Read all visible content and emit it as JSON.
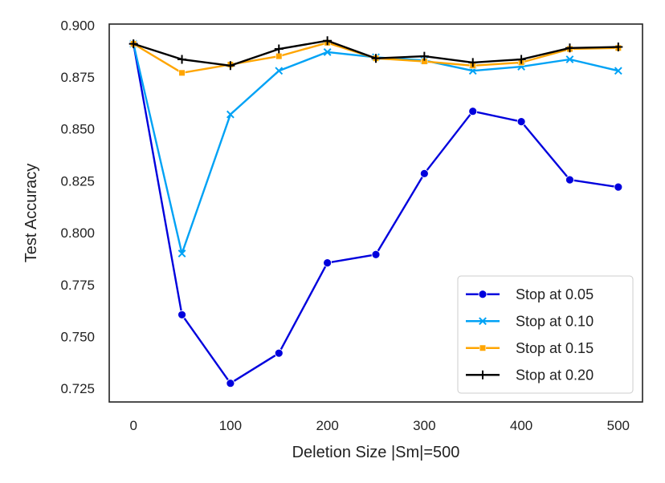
{
  "chart_data": {
    "type": "line",
    "title": "",
    "xlabel": "Deletion Size |Sm|=500",
    "ylabel": "Test Accuracy",
    "xlim": [
      -25,
      525
    ],
    "ylim": [
      0.7185,
      0.9005
    ],
    "x": [
      0,
      50,
      100,
      150,
      200,
      250,
      300,
      350,
      400,
      450,
      500
    ],
    "x_ticks": [
      0,
      100,
      200,
      300,
      400,
      500
    ],
    "x_tick_labels": [
      "0",
      "100",
      "200",
      "300",
      "400",
      "500"
    ],
    "y_ticks": [
      0.725,
      0.75,
      0.775,
      0.8,
      0.825,
      0.85,
      0.875,
      0.9
    ],
    "y_tick_labels": [
      "0.725",
      "0.750",
      "0.775",
      "0.800",
      "0.825",
      "0.850",
      "0.875",
      "0.900"
    ],
    "grid": false,
    "legend_position": "lower-right",
    "series": [
      {
        "name": "Stop at 0.05",
        "color": "#0000dd",
        "marker": "circle",
        "values": [
          0.891,
          0.7605,
          0.7275,
          0.742,
          0.7855,
          0.7895,
          0.8285,
          0.8585,
          0.8535,
          0.8255,
          0.822
        ]
      },
      {
        "name": "Stop at 0.10",
        "color": "#00a2f5",
        "marker": "x",
        "values": [
          0.891,
          0.79,
          0.857,
          0.878,
          0.887,
          0.8845,
          0.883,
          0.878,
          0.88,
          0.8835,
          0.878
        ]
      },
      {
        "name": "Stop at 0.15",
        "color": "#ffa500",
        "marker": "square",
        "values": [
          0.891,
          0.877,
          0.881,
          0.885,
          0.8915,
          0.884,
          0.8825,
          0.8805,
          0.882,
          0.8885,
          0.889
        ]
      },
      {
        "name": "Stop at 0.20",
        "color": "#000000",
        "marker": "plus",
        "values": [
          0.891,
          0.8835,
          0.8805,
          0.8885,
          0.8925,
          0.884,
          0.885,
          0.882,
          0.8835,
          0.889,
          0.8895
        ]
      }
    ]
  }
}
